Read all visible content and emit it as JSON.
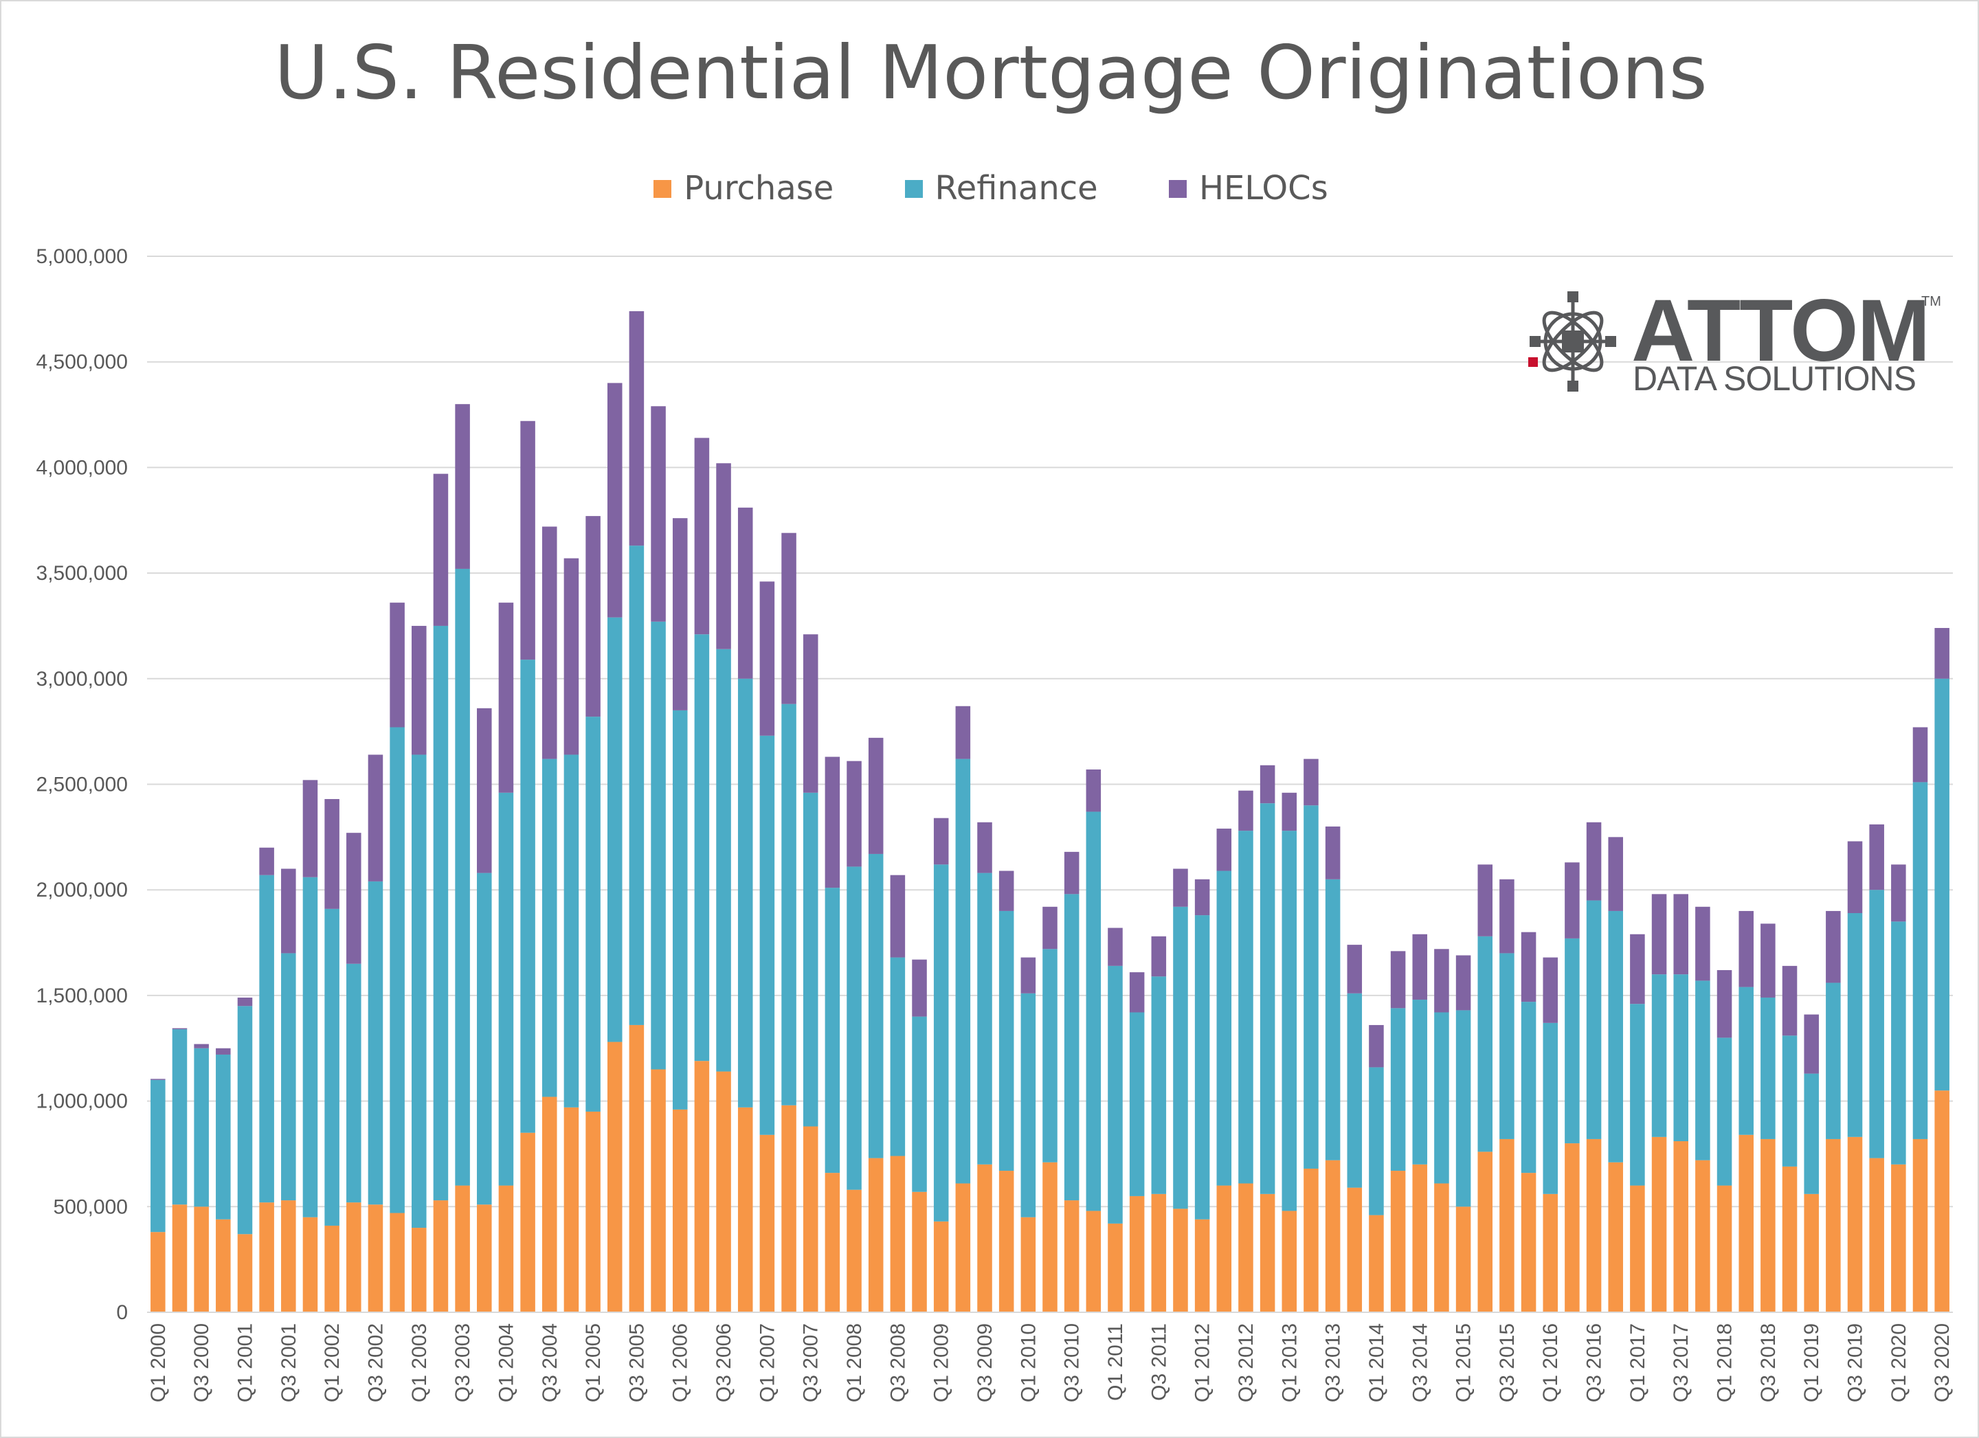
{
  "chart_data": {
    "type": "bar",
    "stacked": true,
    "title": "U.S. Residential Mortgage Originations",
    "xlabel": "",
    "ylabel": "",
    "ylim": [
      0,
      5000000
    ],
    "yticks": [
      0,
      500000,
      1000000,
      1500000,
      2000000,
      2500000,
      3000000,
      3500000,
      4000000,
      4500000,
      5000000
    ],
    "ytick_labels": [
      "0",
      "500,000",
      "1,000,000",
      "1,500,000",
      "2,000,000",
      "2,500,000",
      "3,000,000",
      "3,500,000",
      "4,000,000",
      "4,500,000",
      "5,000,000"
    ],
    "grid": true,
    "legend_position": "top-center",
    "categories": [
      "Q1 2000",
      "Q2 2000",
      "Q3 2000",
      "Q4 2000",
      "Q1 2001",
      "Q2 2001",
      "Q3 2001",
      "Q4 2001",
      "Q1 2002",
      "Q2 2002",
      "Q3 2002",
      "Q4 2002",
      "Q1 2003",
      "Q2 2003",
      "Q3 2003",
      "Q4 2003",
      "Q1 2004",
      "Q2 2004",
      "Q3 2004",
      "Q4 2004",
      "Q1 2005",
      "Q2 2005",
      "Q3 2005",
      "Q4 2005",
      "Q1 2006",
      "Q2 2006",
      "Q3 2006",
      "Q4 2006",
      "Q1 2007",
      "Q2 2007",
      "Q3 2007",
      "Q4 2007",
      "Q1 2008",
      "Q2 2008",
      "Q3 2008",
      "Q4 2008",
      "Q1 2009",
      "Q2 2009",
      "Q3 2009",
      "Q4 2009",
      "Q1 2010",
      "Q2 2010",
      "Q3 2010",
      "Q4 2010",
      "Q1 2011",
      "Q2 2011",
      "Q3 2011",
      "Q4 2011",
      "Q1 2012",
      "Q2 2012",
      "Q3 2012",
      "Q4 2012",
      "Q1 2013",
      "Q2 2013",
      "Q3 2013",
      "Q4 2013",
      "Q1 2014",
      "Q2 2014",
      "Q3 2014",
      "Q4 2014",
      "Q1 2015",
      "Q2 2015",
      "Q3 2015",
      "Q4 2015",
      "Q1 2016",
      "Q2 2016",
      "Q3 2016",
      "Q4 2016",
      "Q1 2017",
      "Q2 2017",
      "Q3 2017",
      "Q4 2017",
      "Q1 2018",
      "Q2 2018",
      "Q3 2018",
      "Q4 2018",
      "Q1 2019",
      "Q2 2019",
      "Q3 2019",
      "Q4 2019",
      "Q1 2020",
      "Q2 2020",
      "Q3 2020"
    ],
    "shown_tick_labels": [
      "Q1 2000",
      "Q3 2000",
      "Q1 2001",
      "Q3 2001",
      "Q1 2002",
      "Q3 2002",
      "Q1 2003",
      "Q3 2003",
      "Q1 2004",
      "Q3 2004",
      "Q1 2005",
      "Q3 2005",
      "Q1 2006",
      "Q3 2006",
      "Q1 2007",
      "Q3 2007",
      "Q1 2008",
      "Q3 2008",
      "Q1 2009",
      "Q3 2009",
      "Q1 2010",
      "Q3 2010",
      "Q1 2011",
      "Q3 2011",
      "Q1 2012",
      "Q3 2012",
      "Q1 2013",
      "Q3 2013",
      "Q1 2014",
      "Q3 2014",
      "Q1 2015",
      "Q3 2015",
      "Q1 2016",
      "Q3 2016",
      "Q1 2017",
      "Q3 2017",
      "Q1 2018",
      "Q3 2018",
      "Q1 2019",
      "Q3 2019",
      "Q1 2020",
      "Q3 2020"
    ],
    "series": [
      {
        "name": "Purchase",
        "color": "#f79646",
        "values": [
          380000,
          510000,
          500000,
          440000,
          370000,
          520000,
          530000,
          450000,
          410000,
          520000,
          510000,
          470000,
          400000,
          530000,
          600000,
          510000,
          600000,
          850000,
          1020000,
          970000,
          950000,
          1280000,
          1360000,
          1150000,
          960000,
          1190000,
          1140000,
          970000,
          840000,
          980000,
          880000,
          660000,
          580000,
          730000,
          740000,
          570000,
          430000,
          610000,
          700000,
          670000,
          450000,
          710000,
          530000,
          480000,
          420000,
          550000,
          560000,
          490000,
          440000,
          600000,
          610000,
          560000,
          480000,
          680000,
          720000,
          590000,
          460000,
          670000,
          700000,
          610000,
          500000,
          760000,
          820000,
          660000,
          560000,
          800000,
          820000,
          710000,
          600000,
          830000,
          810000,
          720000,
          600000,
          840000,
          820000,
          690000,
          560000,
          820000,
          830000,
          730000,
          700000,
          820000,
          1050000
        ]
      },
      {
        "name": "Refinance",
        "color": "#4bacc6",
        "values": [
          720000,
          830000,
          750000,
          780000,
          1080000,
          1550000,
          1170000,
          1610000,
          1500000,
          1130000,
          1530000,
          2300000,
          2240000,
          2720000,
          2920000,
          1570000,
          1860000,
          2240000,
          1600000,
          1670000,
          1870000,
          2010000,
          2270000,
          2120000,
          1890000,
          2020000,
          2000000,
          2030000,
          1890000,
          1900000,
          1580000,
          1350000,
          1530000,
          1440000,
          940000,
          830000,
          1690000,
          2010000,
          1380000,
          1230000,
          1060000,
          1010000,
          1450000,
          1890000,
          1220000,
          870000,
          1030000,
          1430000,
          1440000,
          1490000,
          1670000,
          1850000,
          1800000,
          1720000,
          1330000,
          920000,
          700000,
          770000,
          780000,
          810000,
          930000,
          1020000,
          880000,
          810000,
          810000,
          970000,
          1130000,
          1190000,
          860000,
          770000,
          790000,
          850000,
          700000,
          700000,
          670000,
          620000,
          570000,
          740000,
          1060000,
          1270000,
          1150000,
          1690000,
          1950000
        ]
      },
      {
        "name": "HELOCs",
        "color": "#8064a2",
        "values": [
          5000,
          5000,
          20000,
          30000,
          40000,
          130000,
          400000,
          460000,
          520000,
          620000,
          600000,
          590000,
          610000,
          720000,
          780000,
          780000,
          900000,
          1130000,
          1100000,
          930000,
          950000,
          1110000,
          1110000,
          1020000,
          910000,
          930000,
          880000,
          810000,
          730000,
          810000,
          750000,
          620000,
          500000,
          550000,
          390000,
          270000,
          220000,
          250000,
          240000,
          190000,
          170000,
          200000,
          200000,
          200000,
          180000,
          190000,
          190000,
          180000,
          170000,
          200000,
          190000,
          180000,
          180000,
          220000,
          250000,
          230000,
          200000,
          270000,
          310000,
          300000,
          260000,
          340000,
          350000,
          330000,
          310000,
          360000,
          370000,
          350000,
          330000,
          380000,
          380000,
          350000,
          320000,
          360000,
          350000,
          330000,
          280000,
          340000,
          340000,
          310000,
          270000,
          260000,
          240000
        ]
      }
    ]
  },
  "legend": {
    "items": [
      {
        "label": "Purchase",
        "color": "#f79646"
      },
      {
        "label": "Refinance",
        "color": "#4bacc6"
      },
      {
        "label": "HELOCs",
        "color": "#8064a2"
      }
    ]
  },
  "logo": {
    "word": "ATTOM",
    "tm": "TM",
    "subtitle": "DATA SOLUTIONS",
    "text_color": "#58595b",
    "accent_color": "#c8102e"
  }
}
